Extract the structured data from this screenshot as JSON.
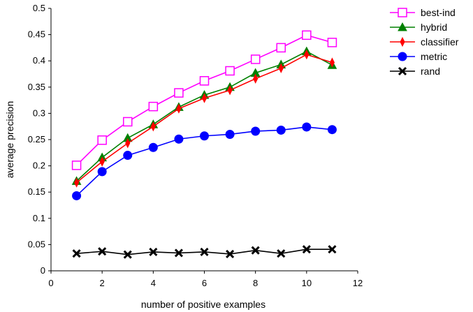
{
  "chart_data": {
    "type": "line",
    "title": "",
    "xlabel": "number of positive examples",
    "ylabel": "average precision",
    "xlim": [
      0,
      12
    ],
    "ylim": [
      0,
      0.5
    ],
    "x_ticks": [
      "0",
      "2",
      "4",
      "6",
      "8",
      "10",
      "12"
    ],
    "y_ticks": [
      "0",
      "0.05",
      "0.1",
      "0.15",
      "0.2",
      "0.25",
      "0.3",
      "0.35",
      "0.4",
      "0.45",
      "0.5"
    ],
    "grid": false,
    "legend_position": "top-right, outside plot",
    "x": [
      1,
      2,
      3,
      4,
      5,
      6,
      7,
      8,
      9,
      10,
      11
    ],
    "series": [
      {
        "name": "best-ind",
        "color": "#ff00ff",
        "marker": "open-square",
        "values": [
          0.201,
          0.249,
          0.284,
          0.313,
          0.339,
          0.362,
          0.381,
          0.403,
          0.425,
          0.449,
          0.435
        ]
      },
      {
        "name": "hybrid",
        "color": "#008000",
        "marker": "triangle",
        "values": [
          0.171,
          0.216,
          0.253,
          0.279,
          0.312,
          0.335,
          0.35,
          0.377,
          0.393,
          0.418,
          0.392
        ]
      },
      {
        "name": "classifier",
        "color": "#ff0000",
        "marker": "diamond",
        "values": [
          0.168,
          0.208,
          0.243,
          0.275,
          0.309,
          0.329,
          0.344,
          0.366,
          0.386,
          0.412,
          0.397
        ]
      },
      {
        "name": "metric",
        "color": "#0000ff",
        "marker": "circle",
        "values": [
          0.143,
          0.189,
          0.22,
          0.235,
          0.251,
          0.257,
          0.26,
          0.266,
          0.268,
          0.274,
          0.269
        ]
      },
      {
        "name": "rand",
        "color": "#000000",
        "marker": "x",
        "values": [
          0.033,
          0.037,
          0.031,
          0.036,
          0.034,
          0.036,
          0.032,
          0.039,
          0.033,
          0.041,
          0.041
        ]
      }
    ]
  }
}
